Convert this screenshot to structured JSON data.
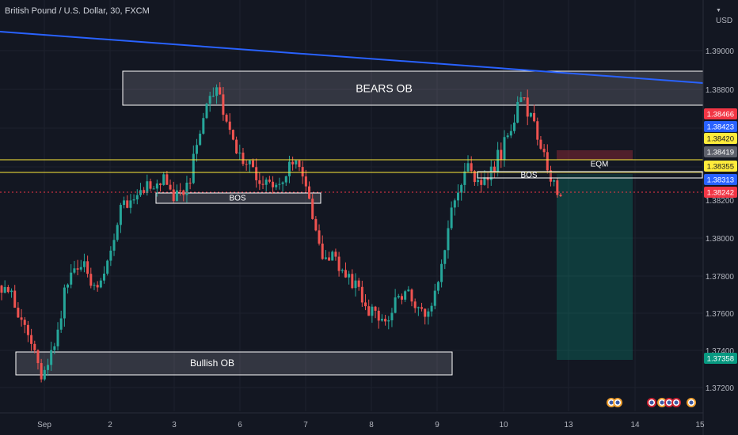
{
  "header": {
    "symbol_title": "British Pound / U.S. Dollar, 30, FXCM",
    "currency": "USD"
  },
  "price_axis": {
    "labels": [
      "1.39000",
      "1.38800",
      "1.38200",
      "1.38000",
      "1.37800",
      "1.37600",
      "1.37400",
      "1.37200"
    ]
  },
  "price_tags": [
    {
      "text": "1.38466",
      "color": "#f23645",
      "text_color": "#ffffff"
    },
    {
      "text": "1.38423",
      "color": "#2962ff",
      "text_color": "#ffffff"
    },
    {
      "text": "1.38420",
      "color": "#ffeb3b",
      "text_color": "#131722"
    },
    {
      "text": "1.38419",
      "color": "#5d606b",
      "text_color": "#ffffff"
    },
    {
      "text": "1.38355",
      "color": "#ffeb3b",
      "text_color": "#131722"
    },
    {
      "text": "1.38313",
      "color": "#2962ff",
      "text_color": "#ffffff"
    },
    {
      "text": "1.38242",
      "color": "#f23645",
      "text_color": "#ffffff"
    },
    {
      "text": "1.37358",
      "color": "#089981",
      "text_color": "#ffffff"
    }
  ],
  "time_axis": {
    "labels": [
      "Sep",
      "2",
      "3",
      "6",
      "7",
      "8",
      "9",
      "10",
      "13",
      "14",
      "15"
    ]
  },
  "zones": {
    "bears_ob": "BEARS OB",
    "bullish_ob": "Bullish OB",
    "bos_left": "BOS",
    "bos_right": "BOS",
    "eqm": "EQM"
  },
  "colors": {
    "background": "#131722",
    "up_candle": "#26a69a",
    "down_candle": "#ef5350",
    "trendline": "#2962ff",
    "horizontal_line": "#ffeb3b",
    "current_price_line": "#f23645",
    "short_stop_zone": "#f23645",
    "short_target_zone": "#089981"
  },
  "chart_data": {
    "type": "candlestick",
    "symbol": "GBPUSD",
    "timeframe": "30",
    "x_tick_labels": [
      "Sep",
      "2",
      "3",
      "6",
      "7",
      "8",
      "9",
      "10",
      "13",
      "14",
      "15"
    ],
    "y_range": [
      1.3705,
      1.392
    ],
    "approx_close_path": [
      [
        0,
        1.3778
      ],
      [
        1,
        1.3769
      ],
      [
        2,
        1.3748
      ],
      [
        3,
        1.3733
      ],
      [
        4,
        1.3748
      ],
      [
        5,
        1.3782
      ],
      [
        6,
        1.379
      ],
      [
        7,
        1.3778
      ],
      [
        8,
        1.3788
      ],
      [
        9,
        1.3818
      ],
      [
        10,
        1.3826
      ],
      [
        11,
        1.3828
      ],
      [
        12,
        1.3835
      ],
      [
        13,
        1.3825
      ],
      [
        14,
        1.383
      ],
      [
        15,
        1.3862
      ],
      [
        16,
        1.3881
      ],
      [
        17,
        1.3862
      ],
      [
        18,
        1.3845
      ],
      [
        19,
        1.3838
      ],
      [
        20,
        1.3828
      ],
      [
        21,
        1.3832
      ],
      [
        22,
        1.3845
      ],
      [
        23,
        1.3832
      ],
      [
        24,
        1.379
      ],
      [
        25,
        1.3792
      ],
      [
        26,
        1.3783
      ],
      [
        27,
        1.3773
      ],
      [
        28,
        1.3762
      ],
      [
        29,
        1.376
      ],
      [
        30,
        1.3775
      ],
      [
        31,
        1.3769
      ],
      [
        32,
        1.3762
      ],
      [
        33,
        1.3783
      ],
      [
        34,
        1.3825
      ],
      [
        35,
        1.3838
      ],
      [
        36,
        1.383
      ],
      [
        37,
        1.384
      ],
      [
        38,
        1.3855
      ],
      [
        39,
        1.3875
      ],
      [
        40,
        1.3865
      ],
      [
        41,
        1.3838
      ],
      [
        42,
        1.3825
      ]
    ],
    "key_levels": [
      1.38466,
      1.38423,
      1.3842,
      1.38419,
      1.38355,
      1.38313,
      1.38242,
      1.37358
    ]
  }
}
